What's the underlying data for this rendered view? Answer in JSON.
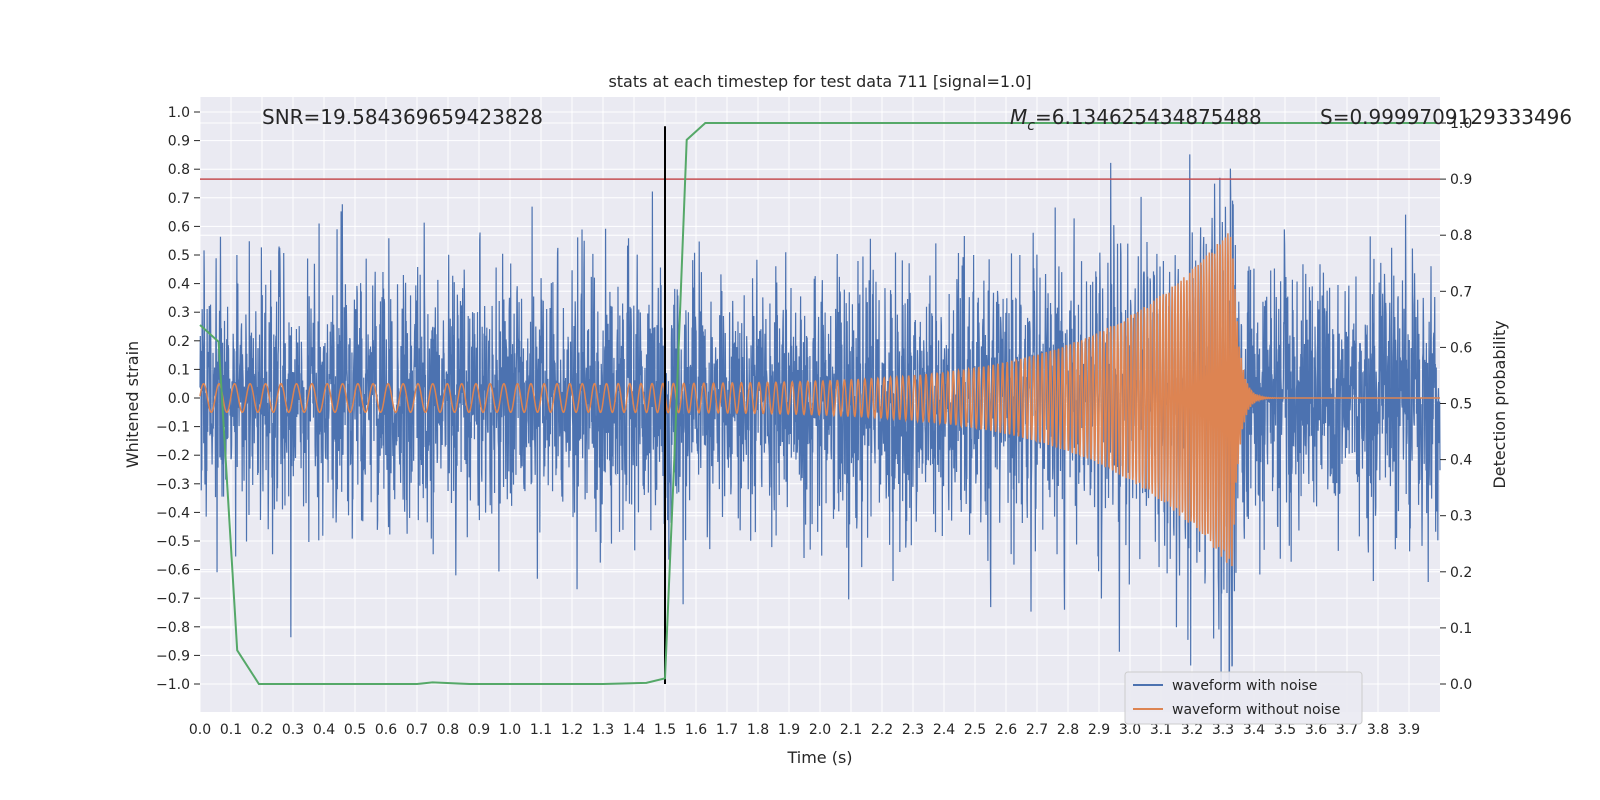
{
  "chart_data": {
    "type": "line",
    "title": "stats at each timestep for test data 711 [signal=1.0]",
    "xlabel": "Time (s)",
    "ylabel": "Whitened strain",
    "y2label": "Detection probability",
    "xlim": [
      0.0,
      4.0
    ],
    "ylim": [
      -1.1,
      1.05
    ],
    "y2lim": [
      -0.05,
      1.0
    ],
    "x_ticks": [
      "0.0",
      "0.1",
      "0.2",
      "0.3",
      "0.4",
      "0.5",
      "0.6",
      "0.7",
      "0.8",
      "0.9",
      "1.0",
      "1.1",
      "1.2",
      "1.3",
      "1.4",
      "1.5",
      "1.6",
      "1.7",
      "1.8",
      "1.9",
      "2.0",
      "2.1",
      "2.2",
      "2.3",
      "2.4",
      "2.5",
      "2.6",
      "2.7",
      "2.8",
      "2.9",
      "3.0",
      "3.1",
      "3.2",
      "3.3",
      "3.4",
      "3.5",
      "3.6",
      "3.7",
      "3.8",
      "3.9"
    ],
    "y_ticks": [
      "1.0",
      "0.9",
      "0.8",
      "0.7",
      "0.6",
      "0.5",
      "0.4",
      "0.3",
      "0.2",
      "0.1",
      "0.0",
      "−0.1",
      "−0.2",
      "−0.3",
      "−0.4",
      "−0.5",
      "−0.6",
      "−0.7",
      "−0.8",
      "−0.9",
      "−1.0"
    ],
    "y2_ticks": [
      "1.0",
      "0.9",
      "0.8",
      "0.7",
      "0.6",
      "0.5",
      "0.4",
      "0.3",
      "0.2",
      "0.1",
      "0.0"
    ],
    "annotations": {
      "snr": "SNR=19.584369659423828",
      "mc": "=6.134625434875488",
      "mc_symbol": "M",
      "mc_sub": "c",
      "s": "S=0.9999709129333496"
    },
    "threshold_line": {
      "axis": "y2",
      "value": 0.9,
      "color": "#c44e52"
    },
    "marker_line": {
      "x": 1.5,
      "y_from": -1.0,
      "y_to": 0.95,
      "color": "#000000"
    },
    "series": [
      {
        "name": "waveform with noise",
        "color": "#4c72b0",
        "noise_std": 0.22,
        "max_value": 0.95,
        "min_value": -1.0
      },
      {
        "name": "waveform without noise",
        "color": "#dd8452",
        "chirp_start_amp": 0.05,
        "chirp_peak_amp": 0.6,
        "merger_time": 3.33,
        "start_freq_hz": 20,
        "end_freq_hz": 120
      },
      {
        "name": "detection probability",
        "color": "#55a868",
        "axis": "y2",
        "x": [
          0.0,
          0.06,
          0.12,
          0.19,
          0.25,
          0.35,
          0.45,
          0.55,
          0.7,
          0.75,
          0.87,
          1.0,
          1.2,
          1.3,
          1.44,
          1.5,
          1.53,
          1.57,
          1.63,
          2.0,
          3.0,
          3.99
        ],
        "y": [
          0.64,
          0.61,
          0.06,
          0.0,
          0.0,
          0.0,
          0.0,
          0.0,
          0.0,
          0.003,
          0.0,
          0.0,
          0.0,
          0.0,
          0.002,
          0.01,
          0.4,
          0.97,
          1.0,
          1.0,
          1.0,
          1.0
        ]
      }
    ],
    "legend": {
      "position": "lower-right",
      "entries": [
        "waveform with noise",
        "waveform without noise"
      ]
    },
    "colors": {
      "background": "#eaeaf2",
      "grid": "#ffffff",
      "text": "#262626"
    }
  }
}
